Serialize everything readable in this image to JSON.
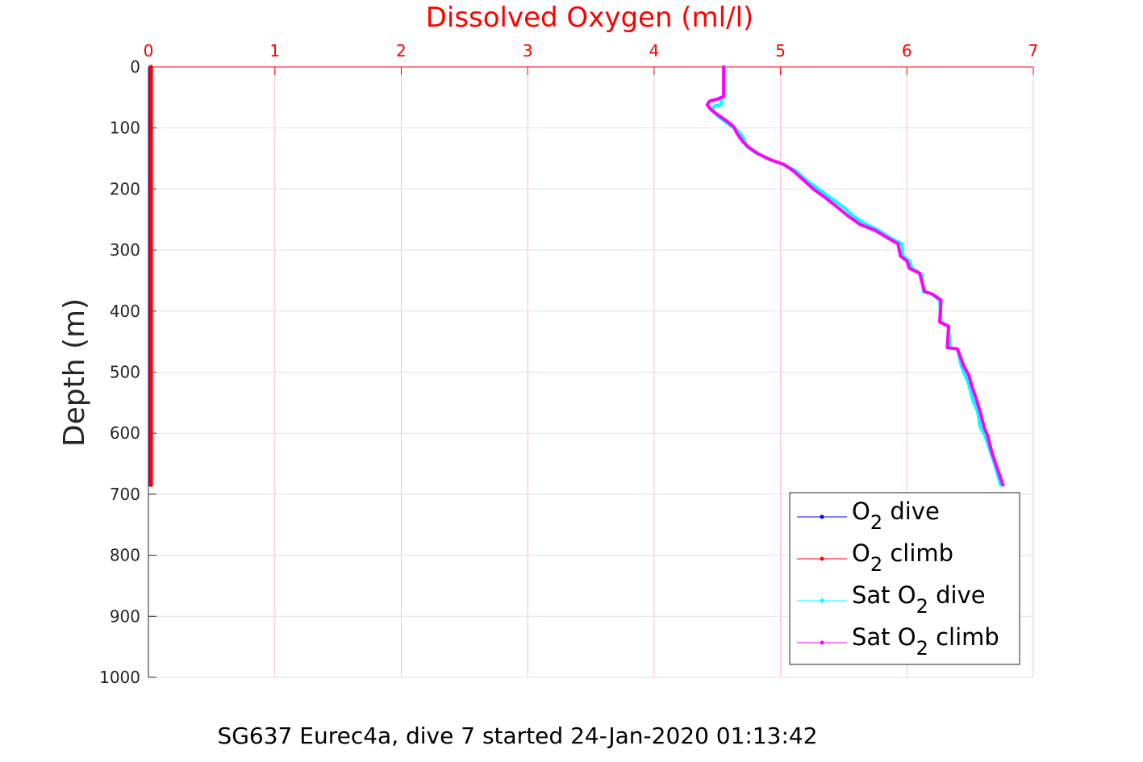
{
  "chart_data": {
    "type": "line",
    "title": "Dissolved Oxygen (ml/l)",
    "xlabel": "",
    "ylabel": "Depth (m)",
    "caption": "SG637 Eurec4a, dive 7 started 24-Jan-2020 01:13:42",
    "xlim": [
      0,
      7
    ],
    "ylim": [
      0,
      1000
    ],
    "y_reversed": true,
    "x_axis_position": "top",
    "xticks": [
      "0",
      "1",
      "2",
      "3",
      "4",
      "5",
      "6",
      "7"
    ],
    "yticks": [
      "0",
      "100",
      "200",
      "300",
      "400",
      "500",
      "600",
      "700",
      "800",
      "900",
      "1000"
    ],
    "grid": true,
    "legend_position": "bottom-right",
    "colors": {
      "title": "#ff0000",
      "o2_dive": "#0000ff",
      "o2_climb": "#ff0000",
      "sat_dive": "#00ffff",
      "sat_climb": "#ff00ff",
      "grid": "#ffc0cb"
    },
    "series": [
      {
        "name": "O2 dive",
        "legend_main": "O",
        "legend_sub": "2",
        "legend_tail": " dive",
        "color": "#0000ff",
        "points": [
          [
            0.01,
            0
          ],
          [
            0.01,
            685
          ]
        ]
      },
      {
        "name": "O2 climb",
        "legend_main": "O",
        "legend_sub": "2",
        "legend_tail": " climb",
        "color": "#ff0000",
        "points": [
          [
            0.02,
            0
          ],
          [
            0.02,
            685
          ]
        ]
      },
      {
        "name": "Sat O2 dive",
        "legend_main": "Sat O",
        "legend_sub": "2",
        "legend_tail": " dive",
        "color": "#00ffff",
        "points": [
          [
            4.56,
            0
          ],
          [
            4.56,
            50
          ],
          [
            4.53,
            52
          ],
          [
            4.53,
            62
          ],
          [
            4.48,
            64
          ],
          [
            4.46,
            68
          ],
          [
            4.49,
            78
          ],
          [
            4.55,
            88
          ],
          [
            4.62,
            98
          ],
          [
            4.68,
            108
          ],
          [
            4.71,
            118
          ],
          [
            4.73,
            130
          ],
          [
            4.8,
            140
          ],
          [
            4.9,
            150
          ],
          [
            5.02,
            160
          ],
          [
            5.12,
            170
          ],
          [
            5.2,
            185
          ],
          [
            5.3,
            200
          ],
          [
            5.4,
            215
          ],
          [
            5.5,
            230
          ],
          [
            5.58,
            245
          ],
          [
            5.68,
            258
          ],
          [
            5.78,
            268
          ],
          [
            5.85,
            278
          ],
          [
            5.96,
            290
          ],
          [
            5.97,
            310
          ],
          [
            6.02,
            318
          ],
          [
            6.04,
            330
          ],
          [
            6.12,
            340
          ],
          [
            6.13,
            368
          ],
          [
            6.2,
            372
          ],
          [
            6.26,
            383
          ],
          [
            6.27,
            418
          ],
          [
            6.33,
            425
          ],
          [
            6.34,
            460
          ],
          [
            6.4,
            462
          ],
          [
            6.43,
            490
          ],
          [
            6.46,
            505
          ],
          [
            6.49,
            520
          ],
          [
            6.52,
            545
          ],
          [
            6.56,
            565
          ],
          [
            6.58,
            590
          ],
          [
            6.62,
            605
          ],
          [
            6.66,
            630
          ],
          [
            6.7,
            655
          ],
          [
            6.74,
            685
          ]
        ]
      },
      {
        "name": "Sat O2 climb",
        "legend_main": "Sat O",
        "legend_sub": "2",
        "legend_tail": " climb",
        "color": "#ff00ff",
        "points": [
          [
            4.55,
            0
          ],
          [
            4.55,
            48
          ],
          [
            4.51,
            52
          ],
          [
            4.44,
            56
          ],
          [
            4.42,
            62
          ],
          [
            4.45,
            70
          ],
          [
            4.5,
            78
          ],
          [
            4.57,
            88
          ],
          [
            4.63,
            98
          ],
          [
            4.66,
            110
          ],
          [
            4.7,
            122
          ],
          [
            4.75,
            132
          ],
          [
            4.82,
            142
          ],
          [
            4.92,
            152
          ],
          [
            5.03,
            160
          ],
          [
            5.1,
            170
          ],
          [
            5.18,
            185
          ],
          [
            5.26,
            200
          ],
          [
            5.36,
            215
          ],
          [
            5.45,
            230
          ],
          [
            5.54,
            245
          ],
          [
            5.63,
            258
          ],
          [
            5.75,
            268
          ],
          [
            5.83,
            278
          ],
          [
            5.93,
            290
          ],
          [
            5.95,
            310
          ],
          [
            6.0,
            318
          ],
          [
            6.02,
            330
          ],
          [
            6.1,
            338
          ],
          [
            6.14,
            368
          ],
          [
            6.2,
            372
          ],
          [
            6.27,
            382
          ],
          [
            6.26,
            418
          ],
          [
            6.33,
            425
          ],
          [
            6.32,
            460
          ],
          [
            6.4,
            462
          ],
          [
            6.45,
            490
          ],
          [
            6.49,
            505
          ],
          [
            6.51,
            520
          ],
          [
            6.55,
            545
          ],
          [
            6.58,
            565
          ],
          [
            6.61,
            590
          ],
          [
            6.64,
            605
          ],
          [
            6.67,
            630
          ],
          [
            6.71,
            655
          ],
          [
            6.76,
            685
          ]
        ]
      }
    ]
  }
}
